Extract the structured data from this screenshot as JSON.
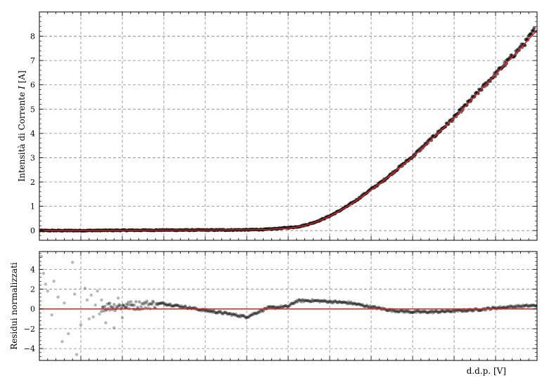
{
  "chart_data": [
    {
      "type": "scatter",
      "panel": "top",
      "title": "",
      "xlabel": "",
      "ylabel": "Intensità di Corrente I [A]",
      "ylabel_parts": {
        "before": "Intensità di Corrente ",
        "symbol": "I",
        "after": " [A]"
      },
      "xlim": [
        0,
        12
      ],
      "ylim": [
        -0.4,
        9.0
      ],
      "yticks": [
        0,
        1,
        2,
        3,
        4,
        5,
        6,
        7,
        8
      ],
      "ytick_labels": [
        "0",
        "1",
        "2",
        "3",
        "4",
        "5",
        "6",
        "7",
        "8"
      ],
      "grid": true,
      "legend": "none",
      "series": [
        {
          "kind": "scatter",
          "color": "#000000",
          "x": [
            0,
            0.5,
            1,
            1.5,
            2,
            2.5,
            3,
            3.5,
            4,
            4.5,
            5,
            5.5,
            6,
            6.2,
            6.4,
            6.6,
            6.8,
            7,
            7.2,
            7.4,
            7.6,
            7.8,
            8,
            8.25,
            8.5,
            8.75,
            9,
            9.25,
            9.5,
            9.75,
            10,
            10.25,
            10.5,
            10.75,
            11,
            11.25,
            11.5,
            11.75,
            11.95
          ],
          "y": [
            0.0,
            0.0,
            0.0,
            0.005,
            0.01,
            0.015,
            0.02,
            0.02,
            0.02,
            0.025,
            0.03,
            0.05,
            0.12,
            0.15,
            0.22,
            0.32,
            0.45,
            0.6,
            0.78,
            0.98,
            1.2,
            1.45,
            1.7,
            2.0,
            2.35,
            2.7,
            3.05,
            3.45,
            3.85,
            4.25,
            4.65,
            5.1,
            5.55,
            6.0,
            6.45,
            6.9,
            7.35,
            7.8,
            8.3
          ]
        },
        {
          "kind": "line",
          "color": "#d62728",
          "x": [
            0,
            0.5,
            1,
            1.5,
            2,
            2.5,
            3,
            3.5,
            4,
            4.5,
            5,
            5.5,
            6,
            6.2,
            6.4,
            6.6,
            6.8,
            7,
            7.2,
            7.4,
            7.6,
            7.8,
            8,
            8.25,
            8.5,
            8.75,
            9,
            9.25,
            9.5,
            9.75,
            10,
            10.25,
            10.5,
            10.75,
            11,
            11.25,
            11.5,
            11.75,
            12
          ],
          "y": [
            0.0,
            0.0,
            0.0,
            0.005,
            0.01,
            0.015,
            0.02,
            0.02,
            0.02,
            0.025,
            0.03,
            0.05,
            0.1,
            0.14,
            0.21,
            0.31,
            0.44,
            0.59,
            0.77,
            0.97,
            1.19,
            1.43,
            1.68,
            1.99,
            2.33,
            2.68,
            3.03,
            3.43,
            3.83,
            4.23,
            4.63,
            5.08,
            5.53,
            5.98,
            6.43,
            6.88,
            7.33,
            7.78,
            8.25
          ]
        }
      ]
    },
    {
      "type": "scatter",
      "panel": "bottom",
      "title": "",
      "xlabel": "d.d.p. [V]",
      "ylabel": "Residui normalizzati",
      "xlim": [
        0,
        12
      ],
      "ylim": [
        -5.2,
        5.8
      ],
      "yticks": [
        -4,
        -2,
        0,
        2,
        4
      ],
      "ytick_labels": [
        "−4",
        "−2",
        "0",
        "2",
        "4"
      ],
      "grid": true,
      "legend": "none",
      "reference_line": {
        "y": 0,
        "color": "#d62728"
      },
      "residual_trend": {
        "x": [
          1.5,
          2,
          2.5,
          3,
          3.5,
          4,
          4.5,
          5,
          5.5,
          6,
          6.2,
          6.5,
          7,
          7.5,
          8,
          8.5,
          9,
          9.5,
          10,
          10.5,
          11,
          11.5,
          12
        ],
        "y": [
          0.2,
          0.3,
          0.4,
          0.55,
          0.2,
          -0.15,
          -0.45,
          -0.8,
          0.1,
          0.25,
          0.8,
          0.85,
          0.75,
          0.6,
          0.2,
          -0.15,
          -0.3,
          -0.3,
          -0.2,
          -0.1,
          0.1,
          0.25,
          0.35
        ]
      },
      "noisy_points": {
        "x": [
          0.05,
          0.1,
          0.15,
          0.2,
          0.3,
          0.35,
          0.45,
          0.55,
          0.6,
          0.7,
          0.8,
          0.85,
          0.9,
          1.0,
          1.1,
          1.15,
          1.2,
          1.25,
          1.3,
          1.35,
          1.4,
          1.45,
          1.5,
          1.6,
          1.7,
          1.8,
          1.9,
          2.0,
          2.1
        ],
        "y": [
          5.3,
          3.6,
          2.5,
          1.8,
          -0.6,
          2.8,
          1.2,
          -3.3,
          0.6,
          -2.5,
          4.7,
          1.5,
          -4.6,
          -1.6,
          2.1,
          0.9,
          -1.0,
          1.4,
          -0.8,
          0.4,
          1.8,
          -0.5,
          0.9,
          -1.4,
          0.6,
          -1.9,
          1.1,
          -0.9,
          0.5
        ]
      }
    }
  ]
}
